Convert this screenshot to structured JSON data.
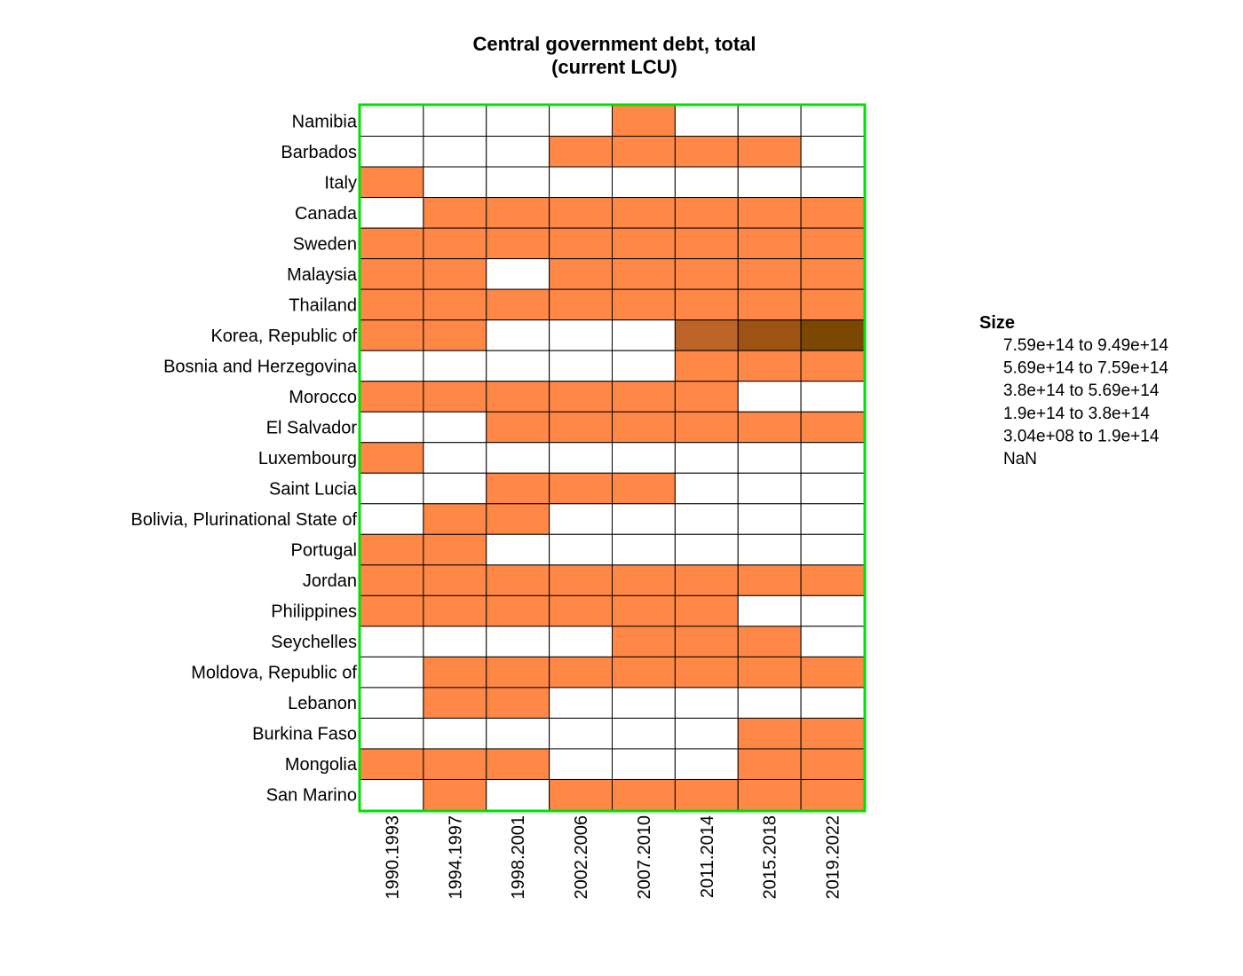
{
  "chart_data": {
    "type": "heatmap",
    "title_lines": [
      "Central government debt, total",
      "(current LCU)"
    ],
    "xlabel": "",
    "ylabel": "",
    "columns": [
      "1990.1993",
      "1994.1997",
      "1998.2001",
      "2002.2006",
      "2007.2010",
      "2011.2014",
      "2015.2018",
      "2019.2022"
    ],
    "rows": [
      "Namibia",
      "Barbados",
      "Italy",
      "Canada",
      "Sweden",
      "Malaysia",
      "Thailand",
      "Korea, Republic of",
      "Bosnia and Herzegovina",
      "Morocco",
      "El Salvador",
      "Luxembourg",
      "Saint Lucia",
      "Bolivia, Plurinational State of",
      "Portugal",
      "Jordan",
      "Philippines",
      "Seychelles",
      "Moldova, Republic of",
      "Lebanon",
      "Burkina Faso",
      "Mongolia",
      "San Marino"
    ],
    "bin_index_matrix": [
      [
        -1,
        -1,
        -1,
        -1,
        0,
        -1,
        -1,
        -1
      ],
      [
        -1,
        -1,
        -1,
        0,
        0,
        0,
        0,
        -1
      ],
      [
        0,
        -1,
        -1,
        -1,
        -1,
        -1,
        -1,
        -1
      ],
      [
        -1,
        0,
        0,
        0,
        0,
        0,
        0,
        0
      ],
      [
        0,
        0,
        0,
        0,
        0,
        0,
        0,
        0
      ],
      [
        0,
        0,
        -1,
        0,
        0,
        0,
        0,
        0
      ],
      [
        0,
        0,
        0,
        0,
        0,
        0,
        0,
        0
      ],
      [
        0,
        0,
        -1,
        -1,
        -1,
        2,
        3,
        4
      ],
      [
        -1,
        -1,
        -1,
        -1,
        -1,
        0,
        0,
        0
      ],
      [
        0,
        0,
        0,
        0,
        0,
        0,
        -1,
        -1
      ],
      [
        -1,
        -1,
        0,
        0,
        0,
        0,
        0,
        0
      ],
      [
        0,
        -1,
        -1,
        -1,
        -1,
        -1,
        -1,
        -1
      ],
      [
        -1,
        -1,
        0,
        0,
        0,
        -1,
        -1,
        -1
      ],
      [
        -1,
        0,
        0,
        -1,
        -1,
        -1,
        -1,
        -1
      ],
      [
        0,
        0,
        -1,
        -1,
        -1,
        -1,
        -1,
        -1
      ],
      [
        0,
        0,
        0,
        0,
        0,
        0,
        0,
        0
      ],
      [
        0,
        0,
        0,
        0,
        0,
        0,
        -1,
        -1
      ],
      [
        -1,
        -1,
        -1,
        -1,
        0,
        0,
        0,
        -1
      ],
      [
        -1,
        0,
        0,
        0,
        0,
        0,
        0,
        0
      ],
      [
        -1,
        0,
        0,
        -1,
        -1,
        -1,
        -1,
        -1
      ],
      [
        -1,
        -1,
        -1,
        -1,
        -1,
        -1,
        0,
        0
      ],
      [
        0,
        0,
        0,
        -1,
        -1,
        -1,
        0,
        0
      ],
      [
        -1,
        0,
        -1,
        0,
        0,
        0,
        0,
        0
      ]
    ],
    "legend": {
      "title": "Size",
      "position": "right",
      "entries": [
        {
          "from": "7.59e+14",
          "sep": "to",
          "to": "9.49e+14",
          "color": "#7a4800"
        },
        {
          "from": "5.69e+14",
          "sep": "to",
          "to": "7.59e+14",
          "color": "#9c5314"
        },
        {
          "from": "3.8e+14",
          "sep": "to",
          "to": "5.69e+14",
          "color": "#bd6428"
        },
        {
          "from": "1.9e+14",
          "sep": "to",
          "to": "3.8e+14",
          "color": "#de7536"
        },
        {
          "from": "3.04e+08",
          "sep": "to",
          "to": "1.9e+14",
          "color": "#ff8847"
        },
        {
          "from": "NaN",
          "sep": "",
          "to": "",
          "color": "#ffffff"
        }
      ]
    },
    "bin_colors_low_to_high": [
      "#ff8847",
      "#de7536",
      "#bd6428",
      "#9c5314",
      "#7a4800"
    ],
    "nan_color": "#ffffff",
    "frame_color": "#00e000",
    "grid_color": "#000000"
  }
}
